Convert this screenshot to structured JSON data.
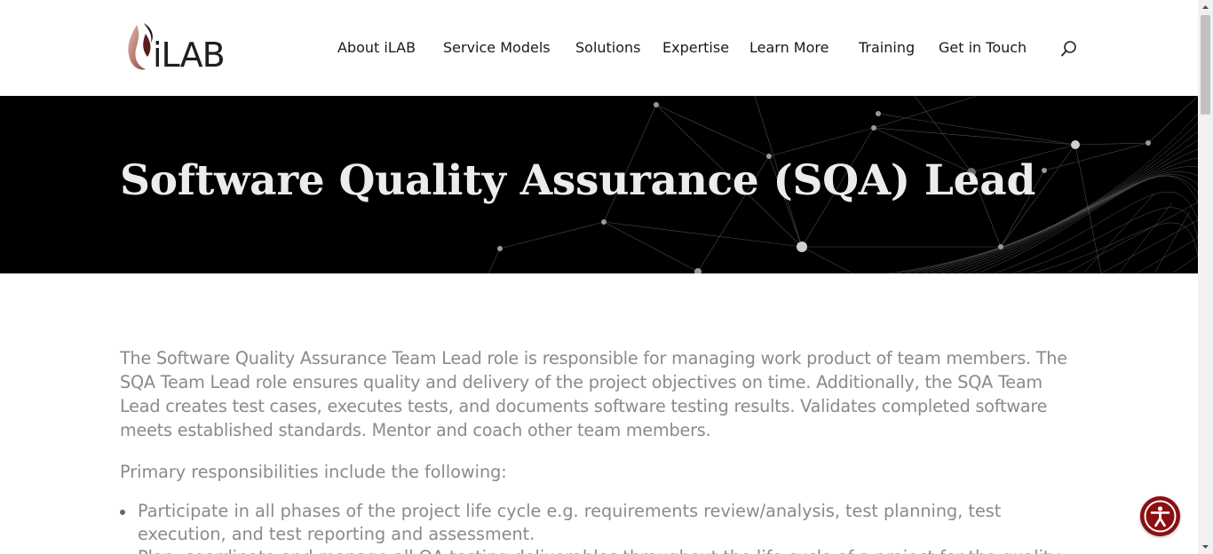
{
  "brand": {
    "logo_text": "iLAB",
    "accent_color": "#8b0f12"
  },
  "nav": {
    "items": [
      {
        "label": "About iLAB"
      },
      {
        "label": "Service Models"
      },
      {
        "label": "Solutions"
      },
      {
        "label": "Expertise"
      },
      {
        "label": "Learn More"
      },
      {
        "label": "Training"
      },
      {
        "label": "Get in Touch"
      }
    ],
    "search_icon": "search-icon"
  },
  "hero": {
    "title": "Software Quality Assurance (SQA) Lead"
  },
  "content": {
    "intro": "The Software Quality Assurance Team Lead role is responsible for managing work product of team members. The SQA Team Lead role ensures quality and delivery of the project objectives on time. Additionally, the SQA Team Lead creates test cases, executes tests, and documents software testing results. Validates completed software meets established standards. Mentor and coach other team members.",
    "responsibilities_heading": "Primary responsibilities include the following:",
    "bullets": [
      "Participate in all phases of the project life cycle e.g. requirements review/analysis, test planning, test execution, and test reporting and assessment.",
      "Plan, coordinate and manage all QA testing deliverables throughout the life cycle of a project for the quality"
    ]
  },
  "accessibility": {
    "icon": "accessibility-icon"
  }
}
